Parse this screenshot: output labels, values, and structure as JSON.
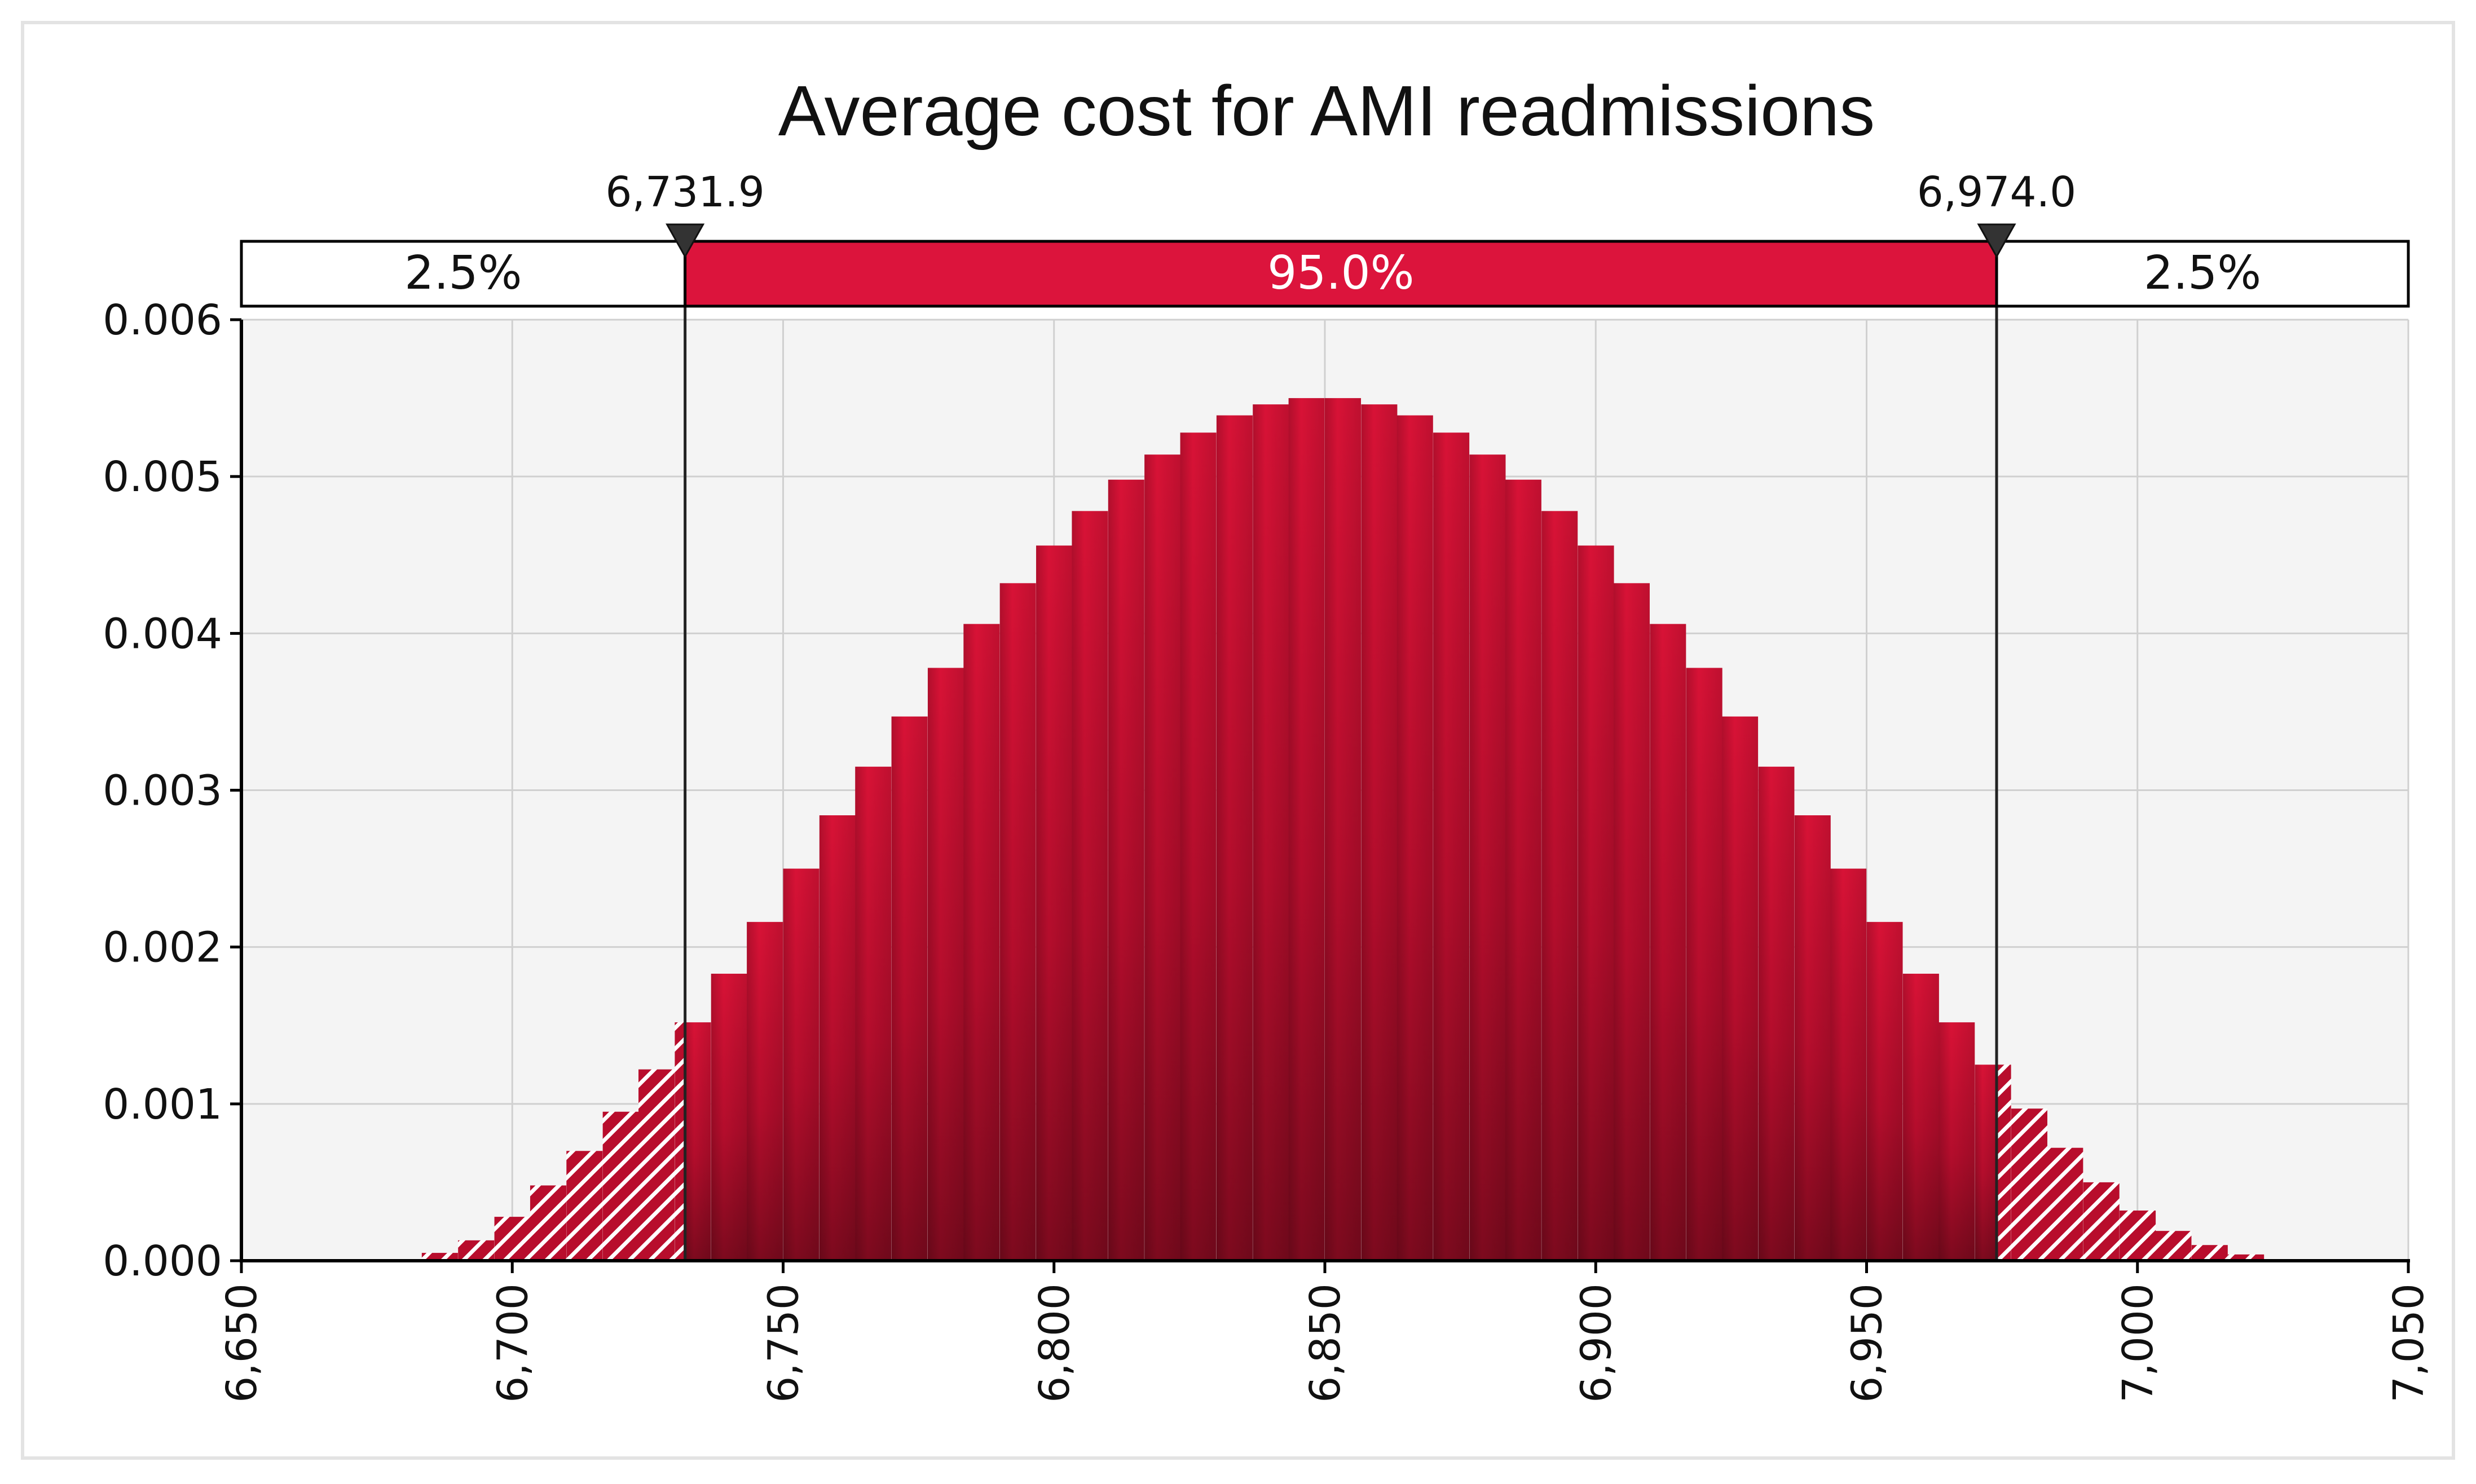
{
  "chart_data": {
    "type": "bar",
    "title": "Average cost for AMI readmissions",
    "xlabel": "",
    "ylabel": "",
    "xlim": [
      6650,
      7050
    ],
    "ylim": [
      0,
      0.006
    ],
    "x_ticks": [
      "6,650",
      "6,700",
      "6,750",
      "6,800",
      "6,850",
      "6,900",
      "6,950",
      "7,000",
      "7,050"
    ],
    "y_ticks": [
      "0.000",
      "0.001",
      "0.002",
      "0.003",
      "0.004",
      "0.005",
      "0.006"
    ],
    "grid": true,
    "bin_width": 6.667,
    "bins_start": [
      6683.3,
      6690.0,
      6696.7,
      6703.3,
      6710.0,
      6716.7,
      6723.3,
      6730.0,
      6736.7,
      6743.3,
      6750.0,
      6756.7,
      6763.3,
      6770.0,
      6776.7,
      6783.3,
      6790.0,
      6796.7,
      6803.3,
      6810.0,
      6816.7,
      6823.3,
      6830.0,
      6836.7,
      6843.3,
      6850.0,
      6856.7,
      6863.3,
      6870.0,
      6876.7,
      6883.3,
      6890.0,
      6896.7,
      6903.3,
      6910.0,
      6916.7,
      6923.3,
      6930.0,
      6936.7,
      6943.3,
      6950.0,
      6956.7,
      6963.3,
      6970.0,
      6976.7,
      6983.3,
      6990.0,
      6996.7,
      7003.3,
      7010.0,
      7016.7
    ],
    "values": [
      5e-05,
      0.00013,
      0.00028,
      0.00048,
      0.0007,
      0.00095,
      0.00122,
      0.00152,
      0.00183,
      0.00216,
      0.0025,
      0.00284,
      0.00315,
      0.00347,
      0.00378,
      0.00406,
      0.00432,
      0.00456,
      0.00478,
      0.00498,
      0.00514,
      0.00528,
      0.00539,
      0.00546,
      0.0055,
      0.0055,
      0.00546,
      0.00539,
      0.00528,
      0.00514,
      0.00498,
      0.00478,
      0.00456,
      0.00432,
      0.00406,
      0.00378,
      0.00347,
      0.00315,
      0.00284,
      0.0025,
      0.00216,
      0.00183,
      0.00152,
      0.00125,
      0.00097,
      0.00072,
      0.0005,
      0.00032,
      0.00019,
      0.0001,
      4e-05
    ],
    "interval": {
      "lower": 6731.9,
      "upper": 6974.0,
      "lower_label": "6,731.9",
      "upper_label": "6,974.0",
      "left_tail_label": "2.5%",
      "center_label": "95.0%",
      "right_tail_label": "2.5%"
    },
    "colors": {
      "bar": "#c8102e",
      "bar_dark": "#7d0a1e",
      "band": "#dc143c",
      "plot_bg": "#f4f4f4",
      "grid": "#d0d0d0"
    }
  }
}
